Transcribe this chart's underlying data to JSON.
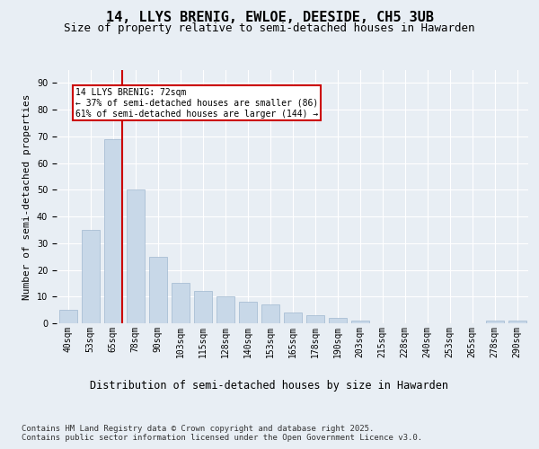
{
  "title1": "14, LLYS BRENIG, EWLOE, DEESIDE, CH5 3UB",
  "title2": "Size of property relative to semi-detached houses in Hawarden",
  "xlabel": "Distribution of semi-detached houses by size in Hawarden",
  "ylabel": "Number of semi-detached properties",
  "categories": [
    "40sqm",
    "53sqm",
    "65sqm",
    "78sqm",
    "90sqm",
    "103sqm",
    "115sqm",
    "128sqm",
    "140sqm",
    "153sqm",
    "165sqm",
    "178sqm",
    "190sqm",
    "203sqm",
    "215sqm",
    "228sqm",
    "240sqm",
    "253sqm",
    "265sqm",
    "278sqm",
    "290sqm"
  ],
  "values": [
    5,
    35,
    69,
    50,
    25,
    15,
    12,
    10,
    8,
    7,
    4,
    3,
    2,
    1,
    0,
    0,
    0,
    0,
    0,
    1,
    1
  ],
  "bar_color": "#c8d8e8",
  "bar_edgecolor": "#a0b8d0",
  "marker_label": "14 LLYS BRENIG: 72sqm",
  "marker_pct_smaller": "37% of semi-detached houses are smaller (86)",
  "marker_pct_larger": "61% of semi-detached houses are larger (144)",
  "marker_color": "#cc0000",
  "annotation_box_edgecolor": "#cc0000",
  "ylim": [
    0,
    95
  ],
  "yticks": [
    0,
    10,
    20,
    30,
    40,
    50,
    60,
    70,
    80,
    90
  ],
  "background_color": "#e8eef4",
  "plot_background": "#e8eef4",
  "grid_color": "#ffffff",
  "footnote1": "Contains HM Land Registry data © Crown copyright and database right 2025.",
  "footnote2": "Contains public sector information licensed under the Open Government Licence v3.0.",
  "title1_fontsize": 11,
  "title2_fontsize": 9,
  "xlabel_fontsize": 8.5,
  "ylabel_fontsize": 8,
  "tick_fontsize": 7,
  "footnote_fontsize": 6.5
}
